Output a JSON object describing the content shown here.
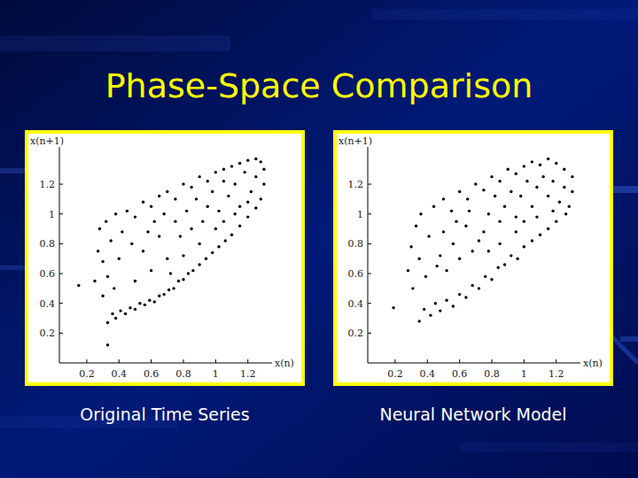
{
  "title": "Phase-Space Comparison",
  "chart_data": [
    {
      "type": "scatter",
      "title": "Original Time Series",
      "x_label": "x(n)",
      "y_label": "x(n+1)",
      "color": "#000000",
      "marker": "circle",
      "xlim": [
        0.03,
        1.35
      ],
      "ylim": [
        0,
        1.45
      ],
      "xticks": [
        0.2,
        0.4,
        0.6,
        0.8,
        1,
        1.2
      ],
      "yticks": [
        0.2,
        0.4,
        0.6,
        0.8,
        1,
        1.2
      ],
      "x": [
        0.33,
        0.36,
        0.38,
        0.41,
        0.44,
        0.47,
        0.5,
        0.53,
        0.56,
        0.59,
        0.62,
        0.65,
        0.68,
        0.71,
        0.74,
        0.77,
        0.8,
        0.83,
        0.86,
        0.9,
        0.94,
        0.98,
        1.02,
        1.06,
        1.1,
        1.15,
        1.2,
        1.25,
        0.25,
        0.27,
        0.28,
        0.3,
        0.3,
        0.32,
        0.33,
        0.35,
        0.37,
        0.38,
        0.4,
        0.42,
        0.45,
        0.5,
        0.55,
        0.6,
        0.65,
        0.7,
        0.75,
        0.8,
        0.85,
        0.9,
        0.95,
        1.0,
        1.05,
        1.1,
        1.15,
        1.2,
        1.25,
        1.28,
        1.3,
        1.3,
        1.28,
        1.25,
        1.22,
        1.18,
        1.15,
        1.12,
        1.08,
        1.05,
        1.02,
        0.98,
        0.95,
        0.92,
        0.88,
        0.85,
        0.82,
        0.78,
        0.75,
        0.5,
        0.55,
        0.6,
        0.65,
        0.7,
        0.72,
        0.62,
        0.68,
        0.58,
        0.48,
        1.0,
        1.05,
        0.9,
        0.8,
        1.12,
        1.2,
        0.15,
        0.33
      ],
      "values": [
        0.27,
        0.33,
        0.3,
        0.35,
        0.33,
        0.37,
        0.36,
        0.4,
        0.39,
        0.42,
        0.41,
        0.45,
        0.46,
        0.49,
        0.5,
        0.55,
        0.56,
        0.6,
        0.62,
        0.66,
        0.7,
        0.74,
        0.78,
        0.82,
        0.86,
        0.92,
        0.98,
        1.04,
        0.55,
        0.75,
        0.9,
        0.45,
        0.68,
        0.95,
        0.58,
        0.82,
        0.5,
        1.0,
        0.7,
        0.88,
        1.02,
        0.98,
        1.08,
        1.05,
        1.12,
        1.15,
        1.1,
        1.2,
        1.18,
        1.25,
        1.22,
        1.28,
        1.3,
        1.32,
        1.34,
        1.36,
        1.37,
        1.35,
        1.3,
        1.2,
        1.1,
        1.25,
        1.15,
        1.28,
        1.05,
        1.2,
        1.12,
        1.22,
        1.02,
        1.15,
        1.05,
        0.95,
        1.1,
        0.9,
        1.02,
        0.85,
        0.95,
        0.55,
        0.75,
        0.62,
        0.85,
        0.7,
        0.6,
        0.95,
        1.0,
        0.88,
        0.8,
        0.9,
        0.95,
        0.8,
        0.72,
        1.0,
        1.08,
        0.52,
        0.12
      ]
    },
    {
      "type": "scatter",
      "title": "Neural Network Model",
      "x_label": "x(n)",
      "y_label": "x(n+1)",
      "color": "#000000",
      "marker": "circle",
      "xlim": [
        0.03,
        1.35
      ],
      "ylim": [
        0,
        1.45
      ],
      "xticks": [
        0.2,
        0.4,
        0.6,
        0.8,
        1,
        1.2
      ],
      "yticks": [
        0.2,
        0.4,
        0.6,
        0.8,
        1,
        1.2
      ],
      "x": [
        0.35,
        0.38,
        0.42,
        0.45,
        0.48,
        0.52,
        0.56,
        0.6,
        0.64,
        0.68,
        0.72,
        0.76,
        0.8,
        0.84,
        0.88,
        0.92,
        0.96,
        1.0,
        1.05,
        1.1,
        1.15,
        1.2,
        1.26,
        0.28,
        0.3,
        0.31,
        0.33,
        0.35,
        0.36,
        0.39,
        0.41,
        0.44,
        0.46,
        0.5,
        0.55,
        0.6,
        0.65,
        0.7,
        0.75,
        0.8,
        0.85,
        0.9,
        0.95,
        1.0,
        1.05,
        1.1,
        1.15,
        1.2,
        1.25,
        1.3,
        1.3,
        1.28,
        1.25,
        1.22,
        1.18,
        1.15,
        1.12,
        1.08,
        1.05,
        1.02,
        0.98,
        0.95,
        0.92,
        0.88,
        0.85,
        0.82,
        0.78,
        0.75,
        0.52,
        0.56,
        0.6,
        0.64,
        0.68,
        0.72,
        0.58,
        0.5,
        0.66,
        0.78,
        0.85,
        0.95,
        1.0,
        1.08,
        1.18,
        0.48,
        0.19
      ],
      "values": [
        0.28,
        0.36,
        0.32,
        0.4,
        0.35,
        0.42,
        0.38,
        0.46,
        0.44,
        0.52,
        0.5,
        0.58,
        0.56,
        0.64,
        0.66,
        0.72,
        0.7,
        0.78,
        0.82,
        0.86,
        0.9,
        0.95,
        1.0,
        0.62,
        0.78,
        0.5,
        0.92,
        0.7,
        1.0,
        0.58,
        0.85,
        1.05,
        0.65,
        1.1,
        1.02,
        1.15,
        1.1,
        1.2,
        1.16,
        1.25,
        1.22,
        1.3,
        1.27,
        1.32,
        1.35,
        1.33,
        1.37,
        1.34,
        1.3,
        1.25,
        1.15,
        1.05,
        1.18,
        1.08,
        1.22,
        1.12,
        1.25,
        1.18,
        1.05,
        1.22,
        1.12,
        0.98,
        1.15,
        1.05,
        0.95,
        1.12,
        1.0,
        0.88,
        0.62,
        0.8,
        0.7,
        0.92,
        0.75,
        0.82,
        0.95,
        0.88,
        1.02,
        0.75,
        0.8,
        0.88,
        0.95,
        0.98,
        1.02,
        0.72,
        0.37
      ]
    }
  ]
}
